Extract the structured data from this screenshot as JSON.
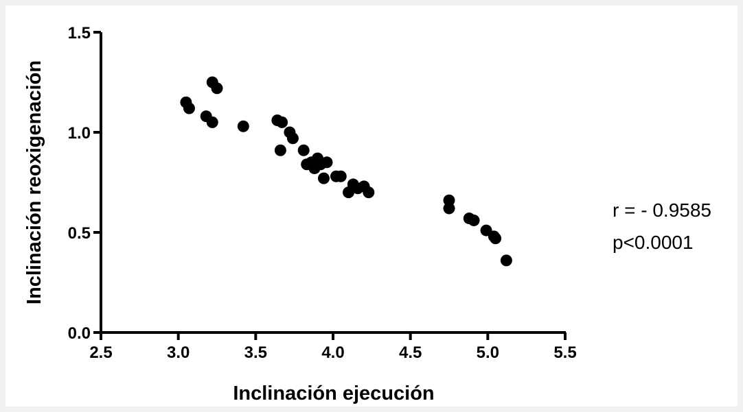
{
  "chart_data": {
    "type": "scatter",
    "title": "",
    "xlabel": "Inclinación ejecución",
    "ylabel": "Inclinación reoxigenación",
    "xlim": [
      2.5,
      5.5
    ],
    "ylim": [
      0.0,
      1.5
    ],
    "x_ticks": [
      "2.5",
      "3.0",
      "3.5",
      "4.0",
      "4.5",
      "5.0",
      "5.5"
    ],
    "y_ticks": [
      "0.0",
      "0.5",
      "1.0",
      "1.5"
    ],
    "grid": false,
    "legend": "none",
    "marker_color": "#000000",
    "points": [
      {
        "x": 3.05,
        "y": 1.15
      },
      {
        "x": 3.07,
        "y": 1.12
      },
      {
        "x": 3.18,
        "y": 1.08
      },
      {
        "x": 3.22,
        "y": 1.05
      },
      {
        "x": 3.22,
        "y": 1.25
      },
      {
        "x": 3.25,
        "y": 1.22
      },
      {
        "x": 3.42,
        "y": 1.03
      },
      {
        "x": 3.64,
        "y": 1.06
      },
      {
        "x": 3.67,
        "y": 1.05
      },
      {
        "x": 3.66,
        "y": 0.91
      },
      {
        "x": 3.72,
        "y": 1.0
      },
      {
        "x": 3.74,
        "y": 0.97
      },
      {
        "x": 3.81,
        "y": 0.91
      },
      {
        "x": 3.83,
        "y": 0.84
      },
      {
        "x": 3.86,
        "y": 0.85
      },
      {
        "x": 3.88,
        "y": 0.82
      },
      {
        "x": 3.9,
        "y": 0.87
      },
      {
        "x": 3.92,
        "y": 0.84
      },
      {
        "x": 3.96,
        "y": 0.85
      },
      {
        "x": 3.94,
        "y": 0.77
      },
      {
        "x": 4.02,
        "y": 0.78
      },
      {
        "x": 4.05,
        "y": 0.78
      },
      {
        "x": 4.1,
        "y": 0.7
      },
      {
        "x": 4.13,
        "y": 0.74
      },
      {
        "x": 4.16,
        "y": 0.72
      },
      {
        "x": 4.2,
        "y": 0.73
      },
      {
        "x": 4.23,
        "y": 0.7
      },
      {
        "x": 4.75,
        "y": 0.66
      },
      {
        "x": 4.75,
        "y": 0.62
      },
      {
        "x": 4.88,
        "y": 0.57
      },
      {
        "x": 4.91,
        "y": 0.56
      },
      {
        "x": 4.99,
        "y": 0.51
      },
      {
        "x": 5.04,
        "y": 0.48
      },
      {
        "x": 5.05,
        "y": 0.47
      },
      {
        "x": 5.12,
        "y": 0.36
      }
    ],
    "annotations": [
      "r = - 0.9585",
      "p<0.0001"
    ]
  }
}
